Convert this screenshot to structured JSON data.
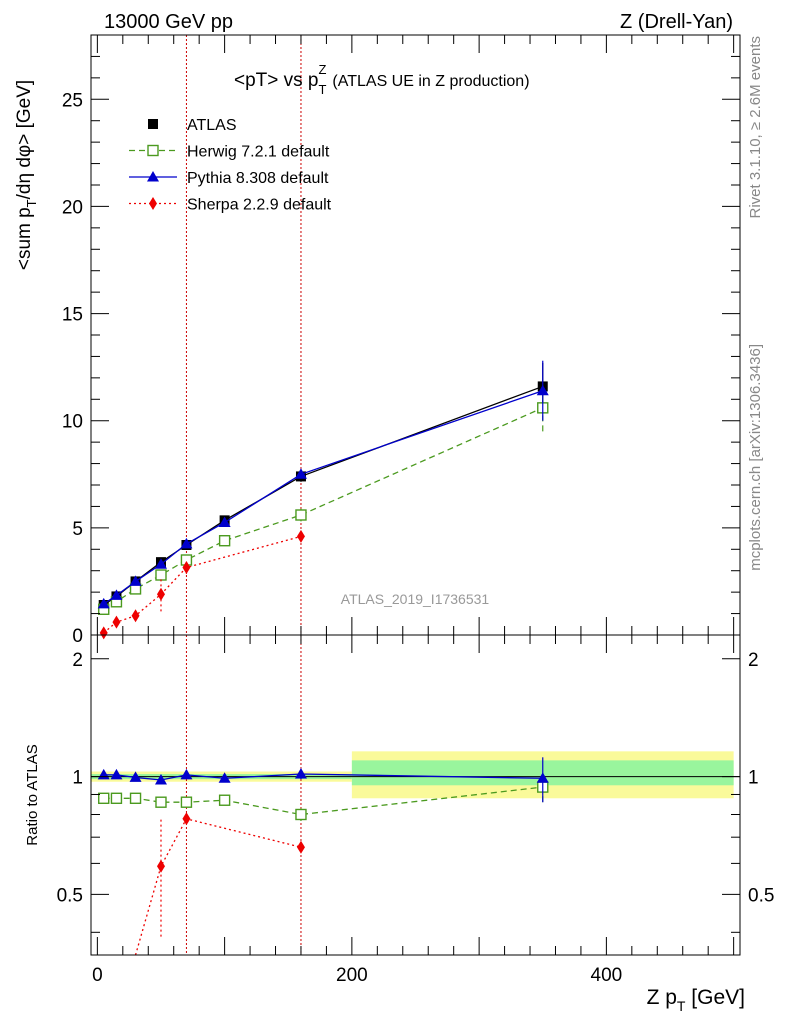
{
  "header": {
    "energy_label": "13000 GeV pp",
    "process_label": "Z (Drell-Yan)"
  },
  "side_labels": {
    "rivet": "Rivet 3.1.10, ≥ 2.6M events",
    "mcplots": "mcplots.cern.ch [arXiv:1306.3436]"
  },
  "chart_data": [
    {
      "type": "line",
      "title_main": "<pT> vs p",
      "title_sym_sup": "Z",
      "title_sym_sub": "T",
      "title_rest": "(ATLAS UE in Z production)",
      "ylabel": "<sum p_T/dη dφ> [GeV]",
      "ylabel_parts": {
        "a": "<sum p",
        "sub": "T",
        "b": "/dη dφ> [GeV]"
      },
      "watermark": "ATLAS_2019_I1736531",
      "xlim": [
        -5,
        505
      ],
      "ylim": [
        0,
        28
      ],
      "y_ticks": [
        0,
        5,
        10,
        15,
        20,
        25
      ],
      "y_tick_labels": [
        "0",
        "5",
        "10",
        "15",
        "20",
        "25"
      ],
      "legend_position": "top-left",
      "vertical_lines_x": [
        70,
        160
      ],
      "series": [
        {
          "name": "ATLAS",
          "color": "#000000",
          "marker": "square-filled",
          "x": [
            5,
            15,
            30,
            50,
            70,
            100,
            160,
            350
          ],
          "y": [
            1.4,
            1.8,
            2.5,
            3.4,
            4.2,
            5.35,
            7.4,
            11.6
          ],
          "err": [
            0.05,
            0.05,
            0.07,
            0.08,
            0.1,
            0.12,
            0.25,
            1.1
          ]
        },
        {
          "name": "Herwig 7.2.1 default",
          "color": "#4b9a1f",
          "marker": "square-open",
          "dash": "6,4",
          "x": [
            5,
            15,
            30,
            50,
            70,
            100,
            160,
            350
          ],
          "y": [
            1.2,
            1.55,
            2.15,
            2.8,
            3.5,
            4.4,
            5.6,
            10.6
          ],
          "err": [
            0.02,
            0.03,
            0.05,
            0.1,
            0.12,
            0.1,
            0.3,
            1.1
          ]
        },
        {
          "name": "Pythia 8.308 default",
          "color": "#0000cc",
          "marker": "triangle-filled",
          "x": [
            5,
            15,
            30,
            50,
            70,
            100,
            160,
            350
          ],
          "y": [
            1.45,
            1.85,
            2.5,
            3.3,
            4.25,
            5.25,
            7.5,
            11.4
          ],
          "err": [
            0.03,
            0.03,
            0.05,
            0.05,
            0.08,
            0.08,
            0.2,
            1.4
          ]
        },
        {
          "name": "Sherpa 2.2.9 default",
          "color": "#ee0000",
          "marker": "diamond-filled",
          "dash": "2,3",
          "x": [
            5,
            15,
            30,
            50,
            70,
            160
          ],
          "y": [
            0.1,
            0.6,
            0.9,
            1.9,
            3.15,
            4.6
          ],
          "err": [
            0.05,
            0.1,
            0.2,
            0.8,
            0.3,
            0.1
          ]
        }
      ]
    },
    {
      "type": "line",
      "ylabel": "Ratio to ATLAS",
      "xlabel_parts": {
        "a": "Z p",
        "sub": "T",
        "b": " [GeV]"
      },
      "xlim": [
        -5,
        505
      ],
      "ylim": [
        0.35,
        2.3
      ],
      "y_ticks": [
        0.5,
        1,
        2
      ],
      "y_tick_labels": [
        "0.5",
        "1",
        "2"
      ],
      "x_ticks": [
        0,
        200,
        400
      ],
      "x_tick_labels": [
        "0",
        "200",
        "400"
      ],
      "band_color_inner": "#99f59d",
      "band_color_outer": "#fafa9a",
      "bands": [
        {
          "x0": -5,
          "x1": 200,
          "inner": [
            0.985,
            1.015
          ],
          "outer": [
            0.97,
            1.03
          ]
        },
        {
          "x0": 200,
          "x1": 500,
          "inner": [
            0.95,
            1.1
          ],
          "outer": [
            0.88,
            1.16
          ]
        }
      ],
      "series": [
        {
          "name": "Herwig 7.2.1 default",
          "color": "#4b9a1f",
          "marker": "square-open",
          "dash": "6,4",
          "x": [
            5,
            15,
            30,
            50,
            70,
            100,
            160,
            350
          ],
          "y": [
            0.88,
            0.88,
            0.88,
            0.86,
            0.86,
            0.87,
            0.8,
            0.94
          ],
          "err": [
            0.01,
            0.01,
            0.01,
            0.01,
            0.01,
            0.01,
            0.03,
            0.08
          ]
        },
        {
          "name": "Pythia 8.308 default",
          "color": "#0000cc",
          "marker": "triangle-filled",
          "x": [
            5,
            15,
            30,
            50,
            70,
            100,
            160,
            350
          ],
          "y": [
            1.01,
            1.01,
            0.995,
            0.98,
            1.01,
            0.99,
            1.015,
            0.99
          ],
          "err": [
            0.01,
            0.01,
            0.01,
            0.01,
            0.01,
            0.01,
            0.03,
            0.13
          ]
        },
        {
          "name": "Sherpa 2.2.9 default",
          "color": "#ee0000",
          "marker": "diamond-filled",
          "dash": "2,3",
          "x": [
            30,
            50,
            70,
            160
          ],
          "y": [
            0.28,
            0.59,
            0.78,
            0.66
          ],
          "err": [
            0.05,
            0.2,
            0.02,
            0.01
          ]
        }
      ]
    }
  ]
}
